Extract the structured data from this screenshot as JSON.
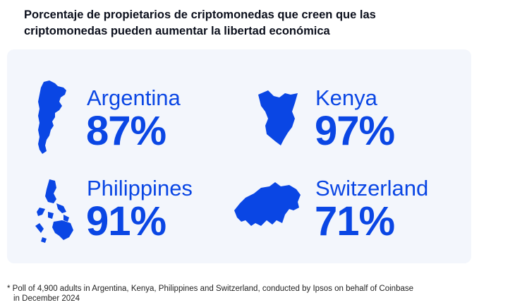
{
  "title": {
    "line1": "Porcentaje de propietarios de criptomonedas que creen que las",
    "line2": "criptomonedas pueden aumentar la libertad económica"
  },
  "chart_data": {
    "type": "table",
    "title": "Porcentaje de propietarios de criptomonedas que creen que las criptomonedas pueden aumentar la libertad económica",
    "categories": [
      "Argentina",
      "Kenya",
      "Philippines",
      "Switzerland"
    ],
    "values": [
      87,
      97,
      91,
      71
    ],
    "labels": [
      "87%",
      "97%",
      "91%",
      "71%"
    ],
    "icons": [
      "argentina-map-icon",
      "kenya-map-icon",
      "philippines-map-icon",
      "switzerland-map-icon"
    ]
  },
  "footnote": {
    "line1": "* Poll of 4,900 adults in Argentina, Kenya, Philippines and Switzerland, conducted by Ipsos on behalf of Coinbase",
    "line2": "in December 2024"
  },
  "colors": {
    "accent": "#0a46e4",
    "panel": "#f3f6fc",
    "title": "#0b0f1c"
  }
}
